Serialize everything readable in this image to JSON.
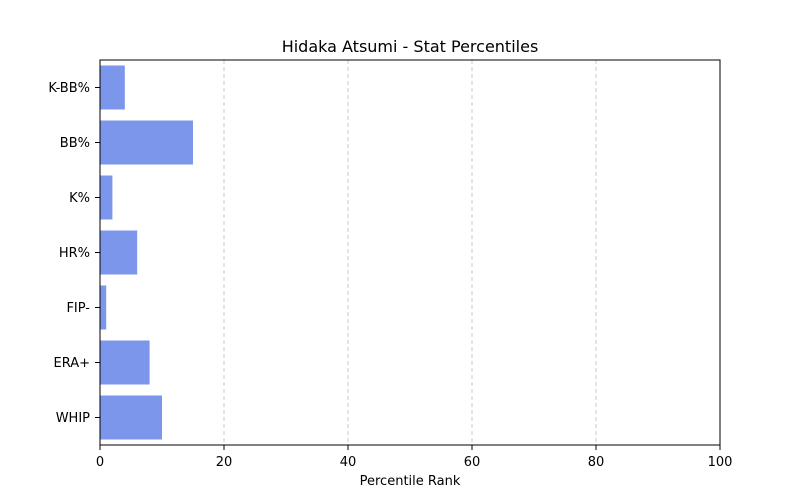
{
  "chart_data": {
    "type": "bar",
    "orientation": "horizontal",
    "title": "Hidaka Atsumi - Stat Percentiles",
    "xlabel": "Percentile Rank",
    "ylabel": "",
    "xlim": [
      0,
      100
    ],
    "xticks": [
      0,
      20,
      40,
      60,
      80,
      100
    ],
    "grid": "x-dashed",
    "bar_color": "#7b96ea",
    "categories": [
      "K-BB%",
      "BB%",
      "K%",
      "HR%",
      "FIP-",
      "ERA+",
      "WHIP"
    ],
    "values": [
      4,
      15,
      2,
      6,
      1,
      8,
      10
    ]
  }
}
